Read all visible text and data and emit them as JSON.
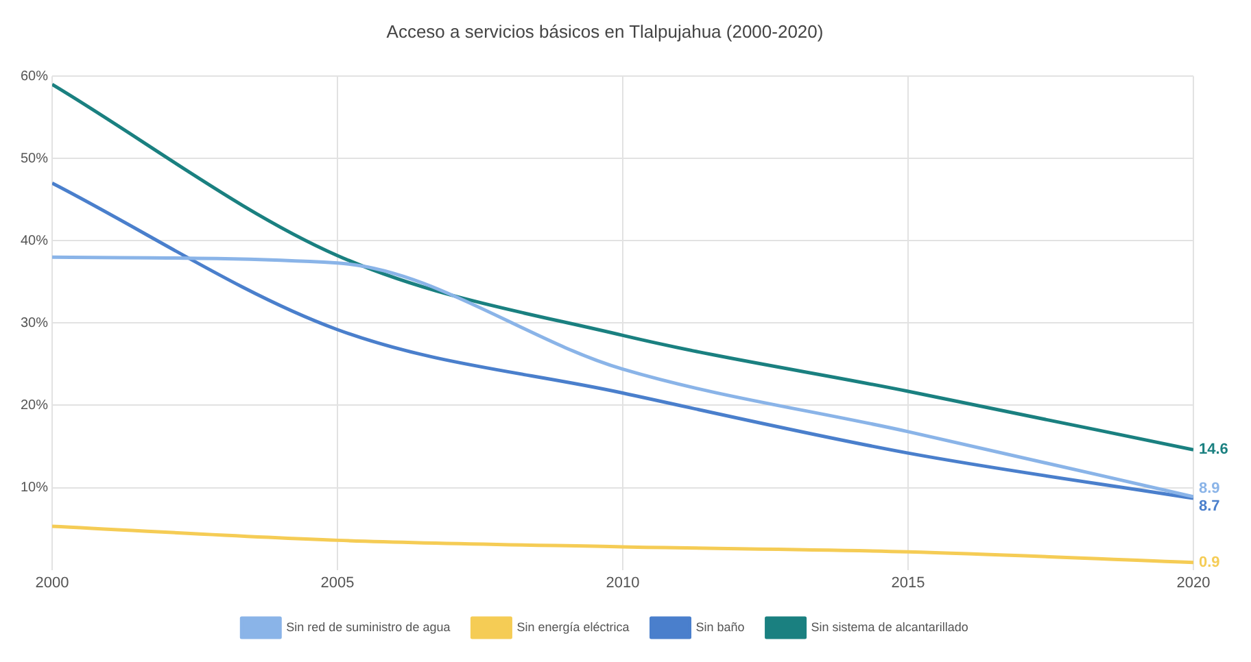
{
  "chart_data": {
    "type": "line",
    "title": "Acceso a servicios básicos en Tlalpujahua (2000-2020)",
    "x": [
      2000,
      2005,
      2010,
      2015,
      2020
    ],
    "series": [
      {
        "name": "Sin red de suministro de agua",
        "color": "#8ab4e8",
        "values": [
          38,
          37.3,
          24.4,
          16.8,
          8.9
        ],
        "value_labels": [
          null,
          null,
          null,
          null,
          "8.9"
        ]
      },
      {
        "name": "Sin energía eléctrica",
        "color": "#f5cc55",
        "values": [
          5.3,
          3.6,
          2.8,
          2.2,
          0.9
        ],
        "value_labels": [
          null,
          null,
          null,
          null,
          "0.9"
        ]
      },
      {
        "name": "Sin baño",
        "color": "#4a7fcc",
        "values": [
          47,
          29.2,
          21.5,
          14.2,
          8.7
        ],
        "value_labels": [
          null,
          null,
          null,
          null,
          "8.7"
        ]
      },
      {
        "name": "Sin sistema de alcantarillado",
        "color": "#1a8080",
        "values": [
          59,
          38.2,
          28.5,
          21.7,
          14.6
        ],
        "value_labels": [
          null,
          null,
          null,
          null,
          "14.6"
        ]
      }
    ],
    "xlim": [
      2000,
      2020
    ],
    "xticks": [
      2000,
      2005,
      2010,
      2015,
      2020
    ],
    "ylim": [
      0,
      60
    ],
    "yticks": [
      {
        "value": 10,
        "label": "10%"
      },
      {
        "value": 20,
        "label": "20%"
      },
      {
        "value": 30,
        "label": "30%"
      },
      {
        "value": 40,
        "label": "40%"
      },
      {
        "value": 50,
        "label": "50%"
      },
      {
        "value": 60,
        "label": "60%"
      }
    ],
    "grid": true,
    "legend": "bottom",
    "marker": "none",
    "line_style": "solid"
  }
}
